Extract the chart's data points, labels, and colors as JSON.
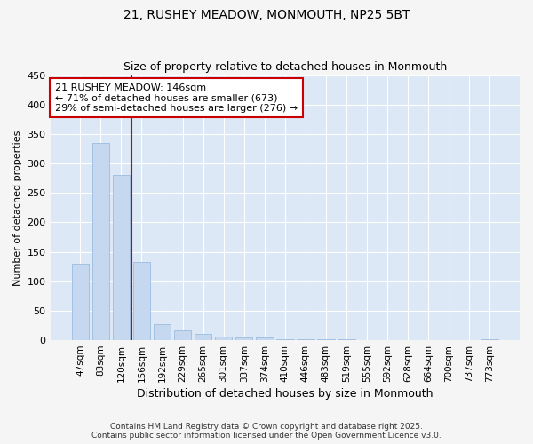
{
  "title_line1": "21, RUSHEY MEADOW, MONMOUTH, NP25 5BT",
  "title_line2": "Size of property relative to detached houses in Monmouth",
  "xlabel": "Distribution of detached houses by size in Monmouth",
  "ylabel": "Number of detached properties",
  "categories": [
    "47sqm",
    "83sqm",
    "120sqm",
    "156sqm",
    "192sqm",
    "229sqm",
    "265sqm",
    "301sqm",
    "337sqm",
    "374sqm",
    "410sqm",
    "446sqm",
    "483sqm",
    "519sqm",
    "555sqm",
    "592sqm",
    "628sqm",
    "664sqm",
    "700sqm",
    "737sqm",
    "773sqm"
  ],
  "values": [
    130,
    335,
    280,
    133,
    27,
    16,
    11,
    6,
    5,
    4,
    2,
    1,
    1,
    1,
    0,
    0,
    0,
    0,
    0,
    0,
    1
  ],
  "bar_color": "#c5d8f0",
  "bar_edgecolor": "#9bbde0",
  "plot_bg_color": "#dce8f5",
  "fig_bg_color": "#f5f5f5",
  "grid_color": "#ffffff",
  "red_line_x": 2.5,
  "annotation_text": "21 RUSHEY MEADOW: 146sqm\n← 71% of detached houses are smaller (673)\n29% of semi-detached houses are larger (276) →",
  "annotation_box_facecolor": "#ffffff",
  "annotation_box_edgecolor": "#cc0000",
  "ylim": [
    0,
    450
  ],
  "yticks": [
    0,
    50,
    100,
    150,
    200,
    250,
    300,
    350,
    400,
    450
  ],
  "footer_line1": "Contains HM Land Registry data © Crown copyright and database right 2025.",
  "footer_line2": "Contains public sector information licensed under the Open Government Licence v3.0."
}
